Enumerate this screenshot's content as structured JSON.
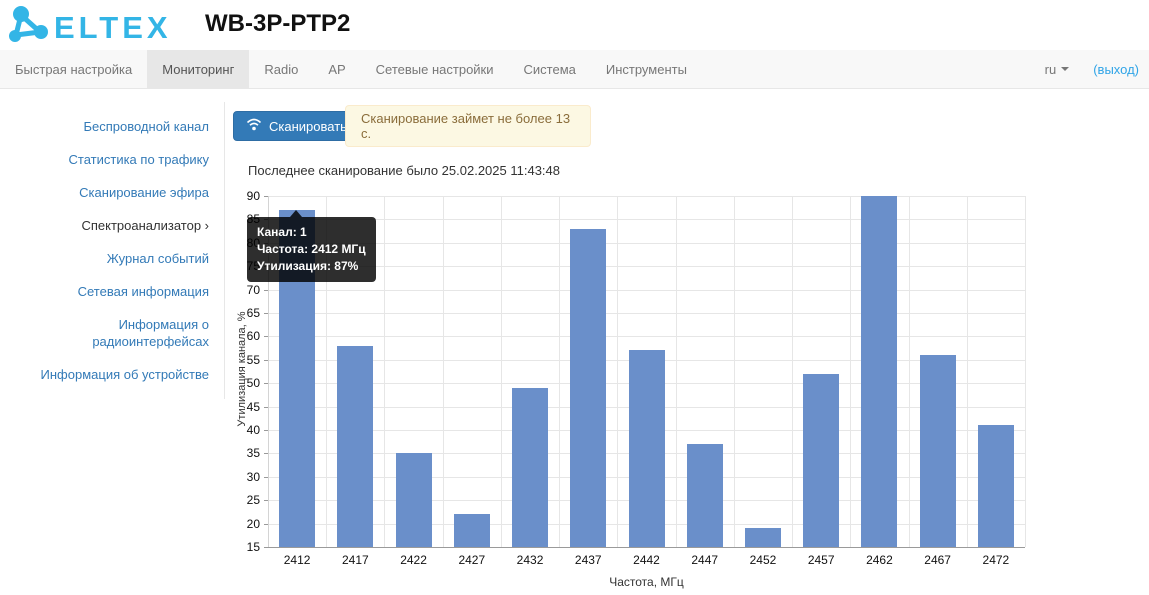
{
  "header": {
    "logo_text": "ELTEX",
    "device_title": "WB-3P-PTP2"
  },
  "navbar": {
    "items": [
      {
        "label": "Быстрая настройка",
        "active": false
      },
      {
        "label": "Мониторинг",
        "active": true
      },
      {
        "label": "Radio",
        "active": false
      },
      {
        "label": "AP",
        "active": false
      },
      {
        "label": "Сетевые настройки",
        "active": false
      },
      {
        "label": "Система",
        "active": false
      },
      {
        "label": "Инструменты",
        "active": false
      }
    ],
    "language": "ru",
    "logout_label": "(выход)"
  },
  "sidebar": {
    "items": [
      {
        "label": "Беспроводной канал",
        "active": false
      },
      {
        "label": "Статистика по трафику",
        "active": false
      },
      {
        "label": "Сканирование эфира",
        "active": false
      },
      {
        "label": "Спектроанализатор ›",
        "active": true
      },
      {
        "label": "Журнал событий",
        "active": false
      },
      {
        "label": "Сетевая информация",
        "active": false
      },
      {
        "label": "Информация о радиоинтерфейсах",
        "active": false
      },
      {
        "label": "Информация об устройстве",
        "active": false
      }
    ]
  },
  "main": {
    "scan_button_label": "Сканировать",
    "alert_text": "Сканирование займет не более 13 с.",
    "last_scan_text": "Последнее сканирование было 25.02.2025 11:43:48"
  },
  "tooltip": {
    "channel": "Канал: 1",
    "frequency": "Частота: 2412 МГц",
    "utilization": "Утилизация: 87%"
  },
  "chart_data": {
    "type": "bar",
    "categories": [
      "2412",
      "2417",
      "2422",
      "2427",
      "2432",
      "2437",
      "2442",
      "2447",
      "2452",
      "2457",
      "2462",
      "2467",
      "2472"
    ],
    "values": [
      87,
      58,
      35,
      22,
      49,
      83,
      57,
      37,
      19,
      52,
      90,
      56,
      41
    ],
    "title": "",
    "xlabel": "Частота, МГц",
    "ylabel": "Утилизация канала, %",
    "ylim": [
      15,
      90
    ],
    "ytick_step": 5,
    "grid": true,
    "legend": "none",
    "bar_color": "#6a8fca"
  },
  "colors": {
    "accent_blue": "#337ab7",
    "logo_blue": "#33b5e6",
    "logout_blue": "#2fa4e7",
    "alert_bg": "#fcf8e3",
    "alert_text": "#8a6d3b",
    "bar": "#6a8fca",
    "nav_bg": "#f8f8f8",
    "nav_active_bg": "#e7e7e7"
  }
}
